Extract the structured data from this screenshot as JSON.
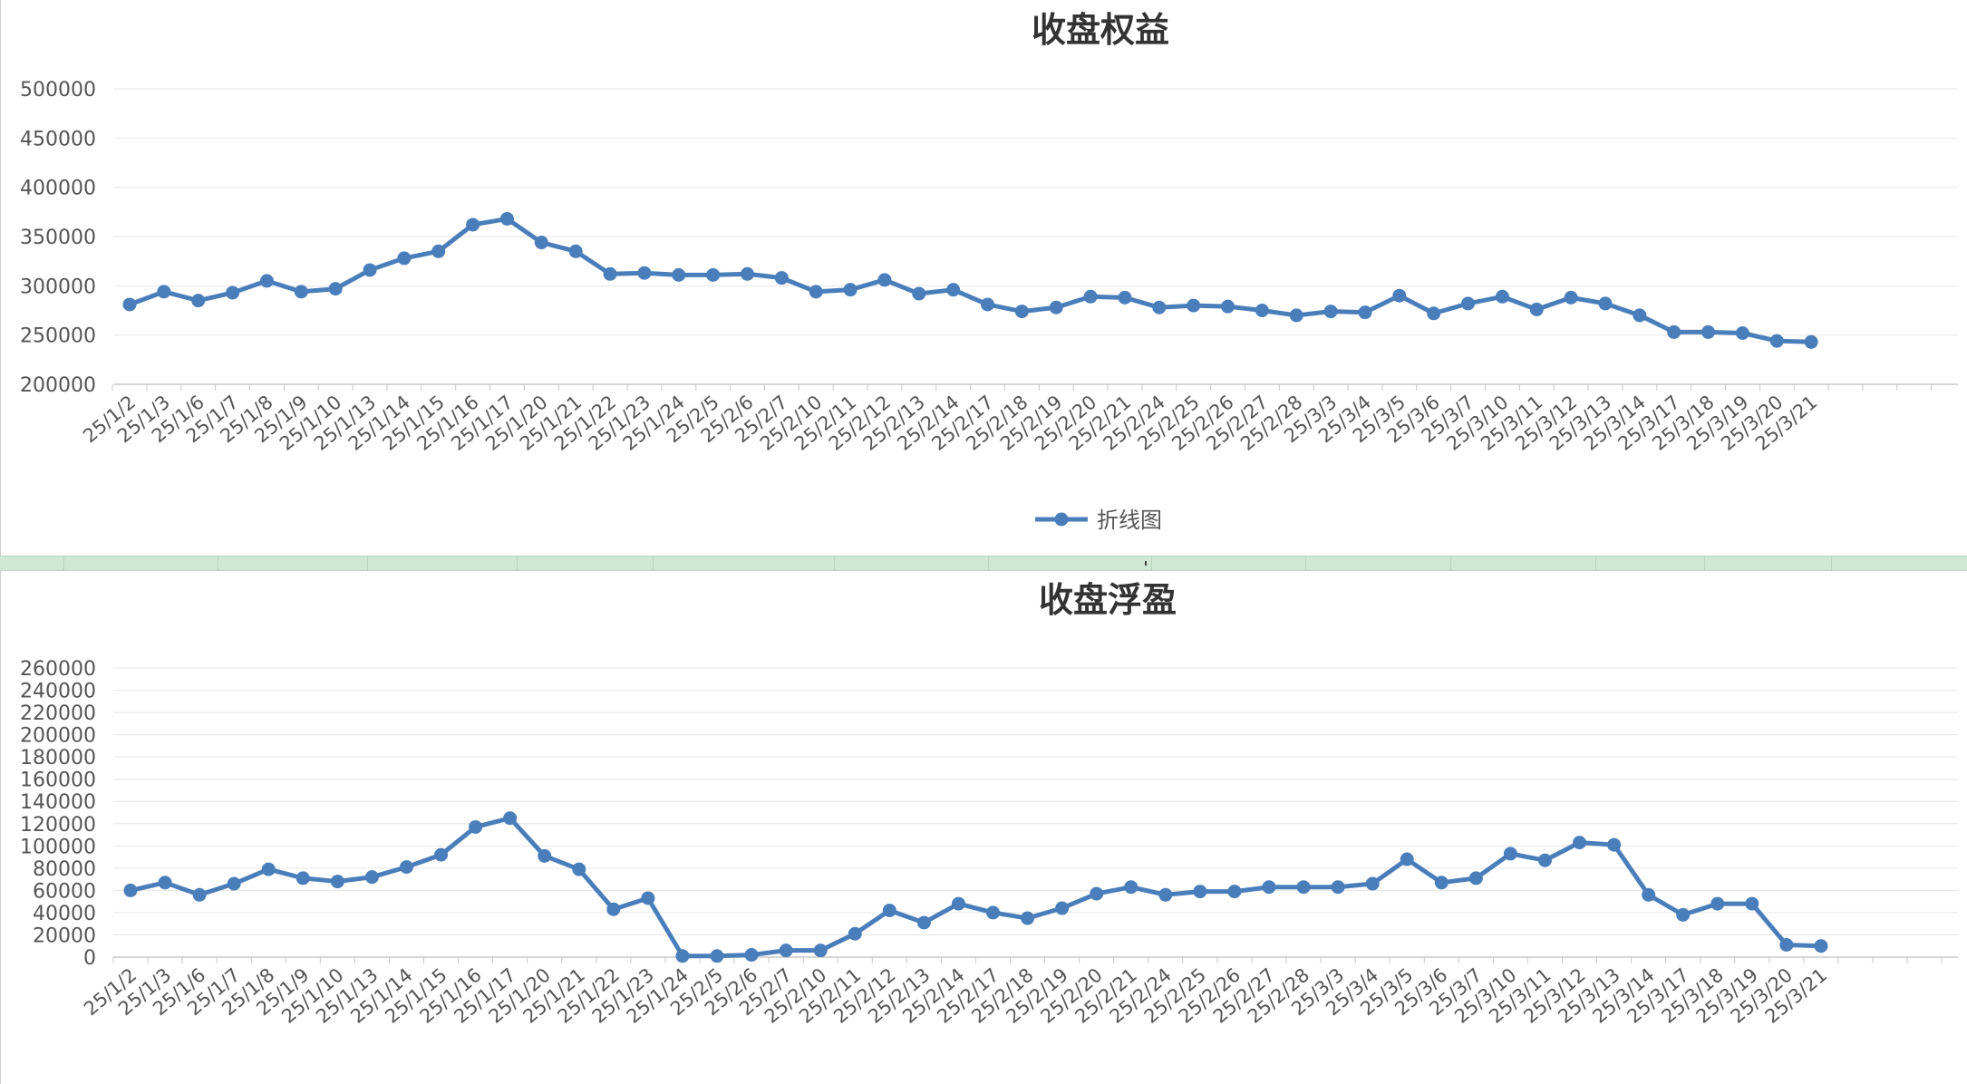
{
  "chart_data": [
    {
      "type": "line",
      "title": "收盘权益",
      "xlabel": "",
      "ylabel": "",
      "ylim": [
        200000,
        500000
      ],
      "y_ticks": [
        200000,
        250000,
        300000,
        350000,
        400000,
        450000,
        500000
      ],
      "grid": true,
      "legend_position": "bottom",
      "legend": [
        "折线图"
      ],
      "series_color": "#4a7ebb",
      "categories": [
        "25/1/2",
        "25/1/3",
        "25/1/6",
        "25/1/7",
        "25/1/8",
        "25/1/9",
        "25/1/10",
        "25/1/13",
        "25/1/14",
        "25/1/15",
        "25/1/16",
        "25/1/17",
        "25/1/20",
        "25/1/21",
        "25/1/22",
        "25/1/23",
        "25/1/24",
        "25/2/5",
        "25/2/6",
        "25/2/7",
        "25/2/10",
        "25/2/11",
        "25/2/12",
        "25/2/13",
        "25/2/14",
        "25/2/17",
        "25/2/18",
        "25/2/19",
        "25/2/20",
        "25/2/21",
        "25/2/24",
        "25/2/25",
        "25/2/26",
        "25/2/27",
        "25/2/28",
        "25/3/3",
        "25/3/4",
        "25/3/5",
        "25/3/6",
        "25/3/7",
        "25/3/10",
        "25/3/11",
        "25/3/12",
        "25/3/13",
        "25/3/14",
        "25/3/17",
        "25/3/18",
        "25/3/19",
        "25/3/20",
        "25/3/21"
      ],
      "series": [
        {
          "name": "折线图",
          "values": [
            281000,
            294000,
            285000,
            293000,
            305000,
            294000,
            297000,
            316000,
            328000,
            335000,
            362000,
            368000,
            344000,
            335000,
            312000,
            313000,
            311000,
            311000,
            312000,
            308000,
            294000,
            296000,
            306000,
            292000,
            296000,
            281000,
            274000,
            278000,
            289000,
            288000,
            278000,
            280000,
            279000,
            275000,
            270000,
            274000,
            273000,
            290000,
            272000,
            282000,
            289000,
            276000,
            288000,
            282000,
            270000,
            253000,
            253000,
            252000,
            244000,
            243000
          ]
        }
      ]
    },
    {
      "type": "line",
      "title": "收盘浮盈",
      "xlabel": "",
      "ylabel": "",
      "ylim": [
        0,
        260000
      ],
      "y_ticks": [
        0,
        20000,
        40000,
        60000,
        80000,
        100000,
        120000,
        140000,
        160000,
        180000,
        200000,
        220000,
        240000,
        260000
      ],
      "grid": true,
      "legend_position": "bottom",
      "series_color": "#4a7ebb",
      "categories": [
        "25/1/2",
        "25/1/3",
        "25/1/6",
        "25/1/7",
        "25/1/8",
        "25/1/9",
        "25/1/10",
        "25/1/13",
        "25/1/14",
        "25/1/15",
        "25/1/16",
        "25/1/17",
        "25/1/20",
        "25/1/21",
        "25/1/22",
        "25/1/23",
        "25/1/24",
        "25/2/5",
        "25/2/6",
        "25/2/7",
        "25/2/10",
        "25/2/11",
        "25/2/12",
        "25/2/13",
        "25/2/14",
        "25/2/17",
        "25/2/18",
        "25/2/19",
        "25/2/20",
        "25/2/21",
        "25/2/24",
        "25/2/25",
        "25/2/26",
        "25/2/27",
        "25/2/28",
        "25/3/3",
        "25/3/4",
        "25/3/5",
        "25/3/6",
        "25/3/7",
        "25/3/10",
        "25/3/11",
        "25/3/12",
        "25/3/13",
        "25/3/14",
        "25/3/17",
        "25/3/18",
        "25/3/19",
        "25/3/20",
        "25/3/21"
      ],
      "series": [
        {
          "values": [
            60000,
            67000,
            56000,
            66000,
            79000,
            71000,
            68000,
            72000,
            81000,
            92000,
            117000,
            125000,
            91000,
            79000,
            43000,
            53000,
            1000,
            1000,
            2000,
            6000,
            6000,
            21000,
            42000,
            31000,
            48000,
            40000,
            35000,
            44000,
            57000,
            63000,
            56000,
            59000,
            59000,
            63000,
            63000,
            63000,
            66000,
            88000,
            67000,
            71000,
            93000,
            87000,
            103000,
            101000,
            56000,
            38000,
            48000,
            48000,
            11000,
            10000
          ]
        }
      ]
    }
  ]
}
